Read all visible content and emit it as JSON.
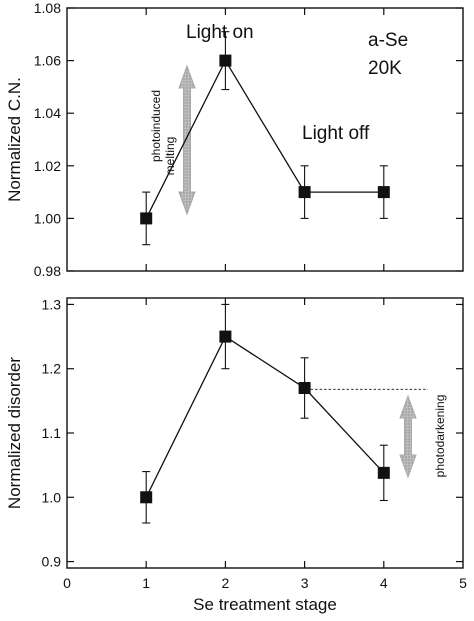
{
  "chart_data": [
    {
      "type": "line",
      "ylabel": "Normalized  C.N.",
      "ylim": [
        0.98,
        1.08
      ],
      "yticks": [
        0.98,
        1.0,
        1.02,
        1.04,
        1.06,
        1.08
      ],
      "ytick_labels": [
        "0.98",
        "1.00",
        "1.02",
        "1.04",
        "1.06",
        "1.08"
      ],
      "x": [
        1,
        2,
        3,
        4
      ],
      "values": [
        1.0,
        1.06,
        1.01,
        1.01
      ],
      "errors": [
        0.01,
        0.011,
        0.01,
        0.01
      ],
      "annotations": {
        "light_on": "Light on",
        "light_off": "Light off",
        "material": "a-Se",
        "temperature": "20K",
        "arrow_label_1": "photoinduced",
        "arrow_label_2": "melting"
      },
      "arrow_color": "#a8a8a8"
    },
    {
      "type": "line",
      "ylabel": "Normalized  disorder",
      "xlabel": "Se  treatment  stage",
      "xlim": [
        0,
        5
      ],
      "xticks": [
        0,
        1,
        2,
        3,
        4,
        5
      ],
      "xtick_labels": [
        "0",
        "1",
        "2",
        "3",
        "4",
        "5"
      ],
      "ylim": [
        0.89,
        1.31
      ],
      "yticks": [
        0.9,
        1.0,
        1.1,
        1.2,
        1.3
      ],
      "ytick_labels": [
        "0.9",
        "1.0",
        "1.1",
        "1.2",
        "1.3"
      ],
      "x": [
        1,
        2,
        3,
        4
      ],
      "values": [
        1.0,
        1.25,
        1.17,
        1.038
      ],
      "errors": [
        0.04,
        0.05,
        0.047,
        0.043
      ],
      "reference_line_y": 1.168,
      "annotations": {
        "arrow_label": "photodarkening"
      },
      "arrow_color": "#a8a8a8"
    }
  ]
}
